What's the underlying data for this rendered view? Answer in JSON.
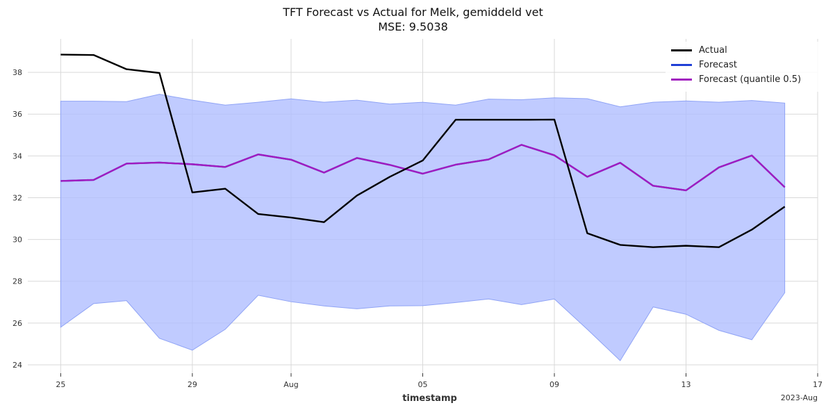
{
  "colors": {
    "actual": "#000000",
    "forecast": "#1f3fd6",
    "quantile": "#a11cbf",
    "band": "#aebcff",
    "grid": "#d9d9d9"
  },
  "chart_data": {
    "type": "line",
    "title": "TFT Forecast vs Actual for Melk, gemiddeld vet",
    "subtitle": "MSE: 9.5038",
    "xlabel": "timestamp",
    "ylabel": "",
    "x_corner_label": "2023-Aug",
    "x": [
      "2023-07-25",
      "2023-07-26",
      "2023-07-27",
      "2023-07-28",
      "2023-07-29",
      "2023-07-30",
      "2023-07-31",
      "2023-08-01",
      "2023-08-02",
      "2023-08-03",
      "2023-08-04",
      "2023-08-05",
      "2023-08-06",
      "2023-08-07",
      "2023-08-08",
      "2023-08-09",
      "2023-08-10",
      "2023-08-11",
      "2023-08-12",
      "2023-08-13",
      "2023-08-14",
      "2023-08-15",
      "2023-08-16"
    ],
    "x_ticks": [
      {
        "date": "2023-07-25",
        "label": "25"
      },
      {
        "date": "2023-07-29",
        "label": "29"
      },
      {
        "date": "2023-08-01",
        "label": "Aug"
      },
      {
        "date": "2023-08-05",
        "label": "05"
      },
      {
        "date": "2023-08-09",
        "label": "09"
      },
      {
        "date": "2023-08-13",
        "label": "13"
      },
      {
        "date": "2023-08-17",
        "label": "17"
      }
    ],
    "xlim": [
      "2023-07-24",
      "2023-08-17"
    ],
    "ylim": [
      23.6,
      39.6
    ],
    "yticks": [
      24,
      26,
      28,
      30,
      32,
      34,
      36,
      38
    ],
    "grid": true,
    "legend_position": "top-right",
    "series": [
      {
        "name": "Actual",
        "color_key": "actual",
        "values": [
          38.85,
          38.83,
          38.15,
          37.97,
          32.25,
          32.43,
          31.22,
          31.05,
          30.83,
          32.1,
          33.0,
          33.78,
          35.73,
          35.73,
          35.73,
          35.74,
          30.3,
          29.74,
          29.63,
          29.7,
          29.63,
          30.47,
          31.57
        ]
      },
      {
        "name": "Forecast",
        "color_key": "forecast",
        "values": [
          32.8,
          32.85,
          33.63,
          33.68,
          33.6,
          33.47,
          34.07,
          33.82,
          33.2,
          33.9,
          33.57,
          33.15,
          33.58,
          33.83,
          34.53,
          34.03,
          33.0,
          33.67,
          32.57,
          32.35,
          33.45,
          34.02,
          32.5
        ]
      },
      {
        "name": "Forecast (quantile 0.5)",
        "color_key": "quantile",
        "values": [
          32.8,
          32.85,
          33.63,
          33.68,
          33.6,
          33.47,
          34.07,
          33.82,
          33.2,
          33.9,
          33.57,
          33.15,
          33.58,
          33.83,
          34.53,
          34.03,
          33.0,
          33.67,
          32.57,
          32.35,
          33.45,
          34.02,
          32.5
        ]
      }
    ],
    "band": {
      "upper": [
        36.62,
        36.62,
        36.6,
        36.95,
        36.67,
        36.43,
        36.57,
        36.73,
        36.57,
        36.67,
        36.48,
        36.57,
        36.43,
        36.72,
        36.69,
        36.78,
        36.74,
        36.35,
        36.57,
        36.63,
        36.57,
        36.65,
        36.53
      ],
      "lower": [
        25.8,
        26.93,
        27.07,
        25.27,
        24.7,
        25.7,
        27.33,
        27.02,
        26.82,
        26.68,
        26.82,
        26.83,
        26.98,
        27.15,
        26.88,
        27.15,
        25.7,
        24.2,
        26.77,
        26.42,
        25.65,
        25.2,
        27.45
      ]
    }
  }
}
